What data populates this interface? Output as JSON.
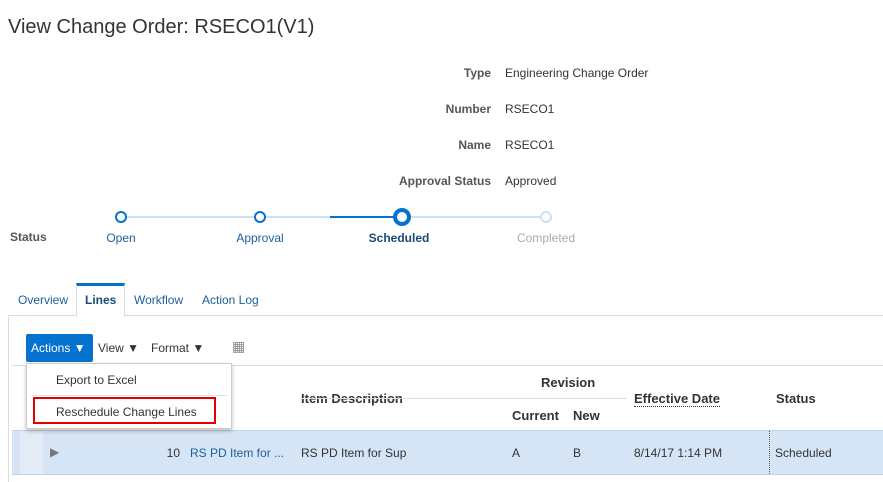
{
  "title": "View Change Order: RSECO1(V1)",
  "fields": [
    {
      "label": "Type",
      "value": "Engineering Change Order"
    },
    {
      "label": "Number",
      "value": "RSECO1"
    },
    {
      "label": "Name",
      "value": "RSECO1"
    },
    {
      "label": "Approval Status",
      "value": "Approved"
    }
  ],
  "status": {
    "label": "Status",
    "steps": [
      "Open",
      "Approval",
      "Scheduled",
      "Completed"
    ],
    "current": "Scheduled"
  },
  "tabs": [
    "Overview",
    "Lines",
    "Workflow",
    "Action Log"
  ],
  "active_tab": "Lines",
  "toolbar": {
    "actions": "Actions",
    "view": "View",
    "format": "Format"
  },
  "menu": [
    "Export to Excel",
    "Reschedule Change Lines"
  ],
  "table": {
    "headers": {
      "item_description": "Item Description",
      "revision": "Revision",
      "current": "Current",
      "new": "New",
      "effective_date": "Effective Date",
      "status": "Status"
    },
    "rows": [
      {
        "line": "10",
        "item": "RS PD Item for ...",
        "description": "RS PD Item for Sup",
        "current": "A",
        "new": "B",
        "effective_date": "8/14/17 1:14 PM",
        "status": "Scheduled"
      }
    ]
  },
  "colors": {
    "accent": "#0572ce",
    "highlight": "#e00000",
    "row": "#d6e5f5"
  }
}
